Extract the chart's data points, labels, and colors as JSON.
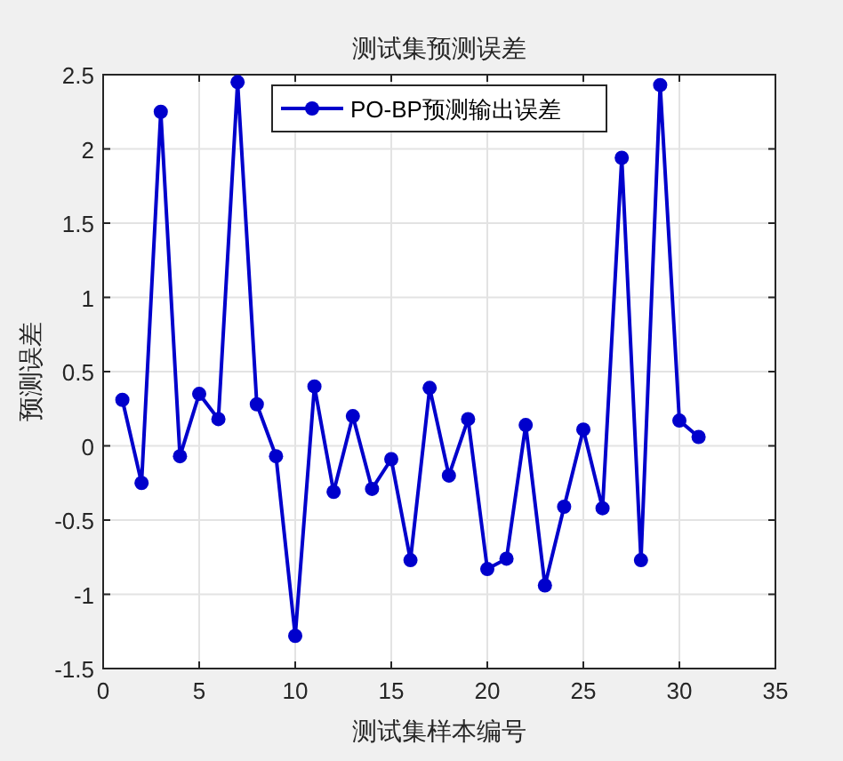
{
  "chart_data": {
    "type": "line",
    "title": "测试集预测误差",
    "xlabel": "测试集样本编号",
    "ylabel": "预测误差",
    "x": [
      1,
      2,
      3,
      4,
      5,
      6,
      7,
      8,
      9,
      10,
      11,
      12,
      13,
      14,
      15,
      16,
      17,
      18,
      19,
      20,
      21,
      22,
      23,
      24,
      25,
      26,
      27,
      28,
      29,
      30,
      31
    ],
    "series": [
      {
        "name": "PO-BP预测输出误差",
        "color": "#0000cc",
        "values": [
          0.31,
          -0.25,
          2.25,
          -0.07,
          0.35,
          0.18,
          2.45,
          0.28,
          -0.07,
          -1.28,
          0.4,
          -0.31,
          0.2,
          -0.29,
          -0.09,
          -0.77,
          0.39,
          -0.2,
          0.18,
          -0.83,
          -0.76,
          0.14,
          -0.94,
          -0.41,
          0.11,
          -0.42,
          1.94,
          -0.77,
          2.43,
          0.17,
          0.06
        ]
      }
    ],
    "xlim": [
      0,
      35
    ],
    "xticks": [
      0,
      5,
      10,
      15,
      20,
      25,
      30,
      35
    ],
    "ylim": [
      -1.5,
      2.5
    ],
    "yticks": [
      -1.5,
      -1,
      -0.5,
      0,
      0.5,
      1,
      1.5,
      2,
      2.5
    ],
    "grid": true,
    "legend": "top",
    "marker": "circle",
    "line_style": "solid"
  }
}
